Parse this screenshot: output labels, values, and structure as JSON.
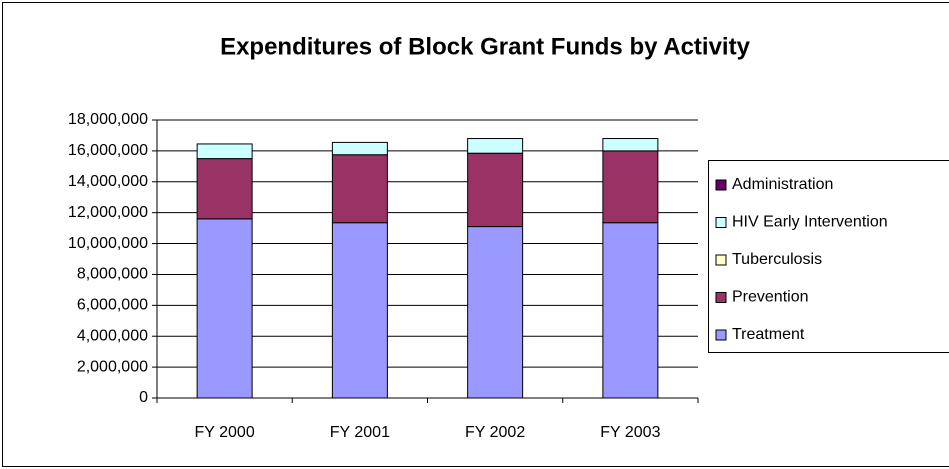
{
  "chart_data": {
    "type": "stacked_bar",
    "title": "Expenditures of Block Grant Funds by Activity",
    "categories": [
      "FY 2000",
      "FY 2001",
      "FY 2002",
      "FY 2003"
    ],
    "series": [
      {
        "name": "Treatment",
        "color": "#9999ff",
        "values": [
          11600000,
          11350000,
          11100000,
          11350000
        ]
      },
      {
        "name": "Prevention",
        "color": "#993366",
        "values": [
          3900000,
          4400000,
          4750000,
          4650000
        ]
      },
      {
        "name": "Tuberculosis",
        "color": "#ffffcc",
        "values": [
          0,
          0,
          0,
          0
        ]
      },
      {
        "name": "HIV Early Intervention",
        "color": "#ccffff",
        "values": [
          950000,
          800000,
          950000,
          800000
        ]
      },
      {
        "name": "Administration",
        "color": "#660066",
        "values": [
          0,
          0,
          0,
          0
        ]
      }
    ],
    "ylim": [
      0,
      18000000
    ],
    "yticks": [
      0,
      {
        "value": 2000000,
        "label": "2,000,000"
      },
      {
        "value": 4000000,
        "label": "4,000,000"
      },
      {
        "value": 6000000,
        "label": "6,000,000"
      },
      {
        "value": 8000000,
        "label": "8,000,000"
      },
      {
        "value": 10000000,
        "label": "10,000,000"
      },
      {
        "value": 12000000,
        "label": "12,000,000"
      },
      {
        "value": 14000000,
        "label": "14,000,000"
      },
      {
        "value": 16000000,
        "label": "16,000,000"
      },
      {
        "value": 18000000,
        "label": "18,000,000"
      }
    ],
    "grid": true,
    "legend": "right"
  }
}
